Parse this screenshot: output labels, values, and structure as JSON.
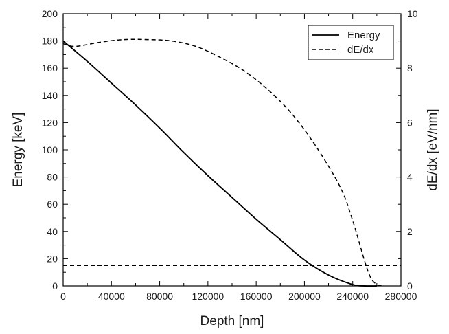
{
  "chart_data": {
    "type": "line",
    "xlabel": "Depth [nm]",
    "ylabel": "Energy [keV]",
    "y2label": "dE/dx [eV/nm]",
    "xlim": [
      0,
      280000
    ],
    "ylim": [
      0,
      200
    ],
    "y2lim": [
      0,
      10
    ],
    "x_ticks": [
      0,
      40000,
      80000,
      120000,
      160000,
      200000,
      240000,
      280000
    ],
    "y_ticks": [
      0,
      20,
      40,
      60,
      80,
      100,
      120,
      140,
      160,
      180,
      200
    ],
    "y2_ticks": [
      0,
      2,
      4,
      6,
      8,
      10
    ],
    "grid": false,
    "legend_position": "top-right",
    "series": [
      {
        "name": "Energy",
        "axis": "left",
        "style": "solid",
        "color": "#000000",
        "points": [
          [
            0,
            180
          ],
          [
            20000,
            165
          ],
          [
            40000,
            149
          ],
          [
            60000,
            133
          ],
          [
            80000,
            116
          ],
          [
            100000,
            98
          ],
          [
            120000,
            81
          ],
          [
            140000,
            65
          ],
          [
            160000,
            49
          ],
          [
            180000,
            34
          ],
          [
            200000,
            19
          ],
          [
            220000,
            8
          ],
          [
            240000,
            1
          ],
          [
            250000,
            0
          ],
          [
            260000,
            0
          ]
        ]
      },
      {
        "name": "dE/dx",
        "axis": "right",
        "style": "dashed",
        "color": "#000000",
        "points": [
          [
            0,
            8.9
          ],
          [
            10000,
            8.8
          ],
          [
            30000,
            8.95
          ],
          [
            50000,
            9.05
          ],
          [
            70000,
            9.05
          ],
          [
            90000,
            9.0
          ],
          [
            110000,
            8.8
          ],
          [
            130000,
            8.4
          ],
          [
            150000,
            7.9
          ],
          [
            170000,
            7.2
          ],
          [
            190000,
            6.3
          ],
          [
            210000,
            5.1
          ],
          [
            230000,
            3.6
          ],
          [
            240000,
            2.4
          ],
          [
            250000,
            0.9
          ],
          [
            255000,
            0.3
          ],
          [
            260000,
            0.05
          ],
          [
            265000,
            0
          ]
        ]
      },
      {
        "name": "",
        "axis": "left",
        "style": "dashed",
        "color": "#000000",
        "points": [
          [
            0,
            15
          ],
          [
            280000,
            15
          ]
        ]
      }
    ]
  }
}
